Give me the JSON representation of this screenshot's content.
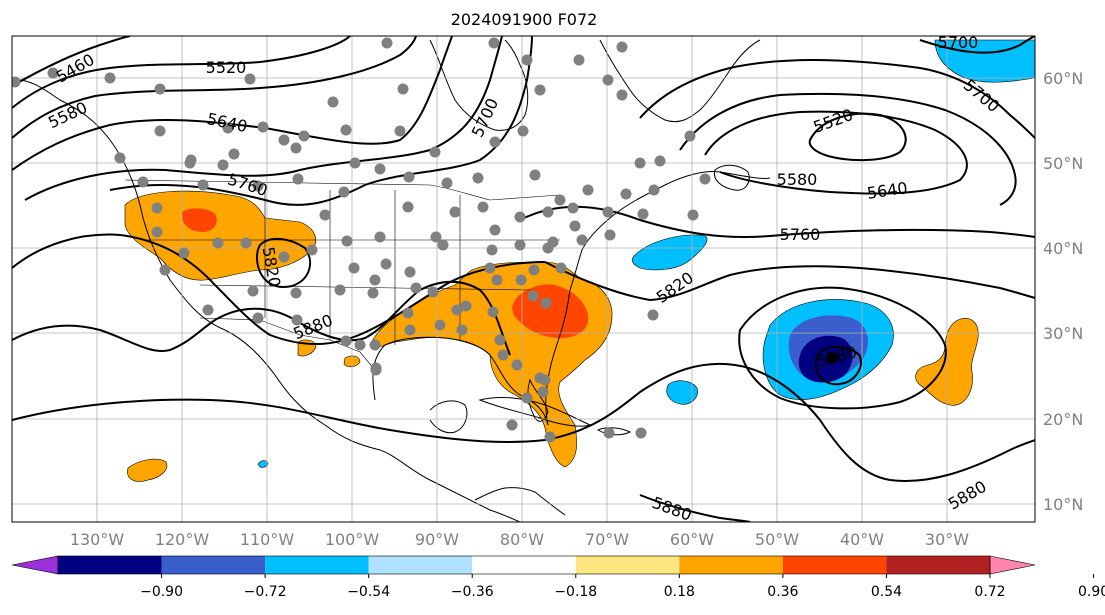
{
  "title": "2024091900 F072",
  "map": {
    "lon_labels": [
      "130°W",
      "120°W",
      "110°W",
      "100°W",
      "90°W",
      "80°W",
      "70°W",
      "60°W",
      "50°W",
      "40°W",
      "30°W"
    ],
    "lat_labels": [
      "60°N",
      "50°N",
      "40°N",
      "30°N",
      "20°N",
      "10°N"
    ],
    "contour_labels": [
      "5460",
      "5520",
      "5580",
      "5640",
      "5700",
      "5760",
      "5820",
      "5880",
      "5520",
      "5580",
      "5640",
      "5700",
      "5760",
      "5820",
      "5580",
      "5880",
      "5880",
      "5700"
    ],
    "contour_color": "#000000",
    "marker_color": "#808080",
    "land_color": "#ffffff"
  },
  "colorbar": {
    "ticks": [
      "−0.90",
      "−0.72",
      "−0.54",
      "−0.36",
      "−0.18",
      "0.18",
      "0.36",
      "0.54",
      "0.72",
      "0.90"
    ],
    "colors": [
      "#9b30d9",
      "#000080",
      "#3a5fcd",
      "#00bfff",
      "#b0e2ff",
      "#ffffff",
      "#ffe680",
      "#ffa500",
      "#ff4500",
      "#b22222",
      "#ff85b0"
    ]
  }
}
